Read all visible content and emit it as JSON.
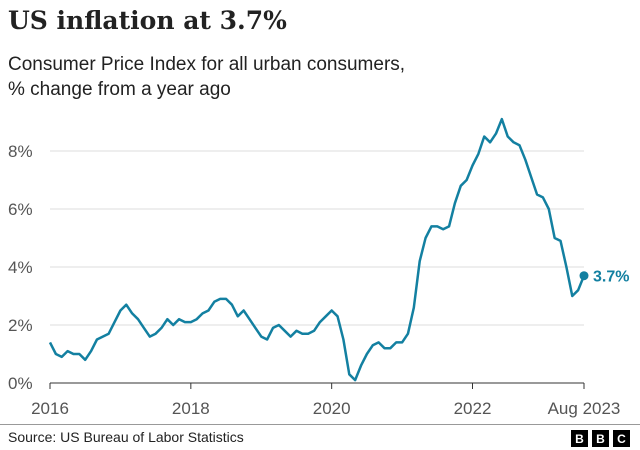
{
  "title": "US inflation at 3.7%",
  "subtitle_line1": "Consumer Price Index for all urban consumers,",
  "subtitle_line2": "% change from a year ago",
  "source": "Source: US Bureau of Labor Statistics",
  "logo": "BBC",
  "chart_data": {
    "type": "line",
    "x_start": "2016-01",
    "x_end": "2023-08",
    "xticks": [
      "2016",
      "2018",
      "2020",
      "2022",
      "Aug 2023"
    ],
    "yticks": [
      "0%",
      "2%",
      "4%",
      "6%",
      "8%"
    ],
    "ylim": [
      0,
      9.2
    ],
    "grid": true,
    "line_color": "#1380A1",
    "end_label": "3.7%",
    "values": [
      1.4,
      1.0,
      0.9,
      1.1,
      1.0,
      1.0,
      0.8,
      1.1,
      1.5,
      1.6,
      1.7,
      2.1,
      2.5,
      2.7,
      2.4,
      2.2,
      1.9,
      1.6,
      1.7,
      1.9,
      2.2,
      2.0,
      2.2,
      2.1,
      2.1,
      2.2,
      2.4,
      2.5,
      2.8,
      2.9,
      2.9,
      2.7,
      2.3,
      2.5,
      2.2,
      1.9,
      1.6,
      1.5,
      1.9,
      2.0,
      1.8,
      1.6,
      1.8,
      1.7,
      1.7,
      1.8,
      2.1,
      2.3,
      2.5,
      2.3,
      1.5,
      0.3,
      0.1,
      0.6,
      1.0,
      1.3,
      1.4,
      1.2,
      1.2,
      1.4,
      1.4,
      1.7,
      2.6,
      4.2,
      5.0,
      5.4,
      5.4,
      5.3,
      5.4,
      6.2,
      6.8,
      7.0,
      7.5,
      7.9,
      8.5,
      8.3,
      8.6,
      9.1,
      8.5,
      8.3,
      8.2,
      7.7,
      7.1,
      6.5,
      6.4,
      6.0,
      5.0,
      4.9,
      4.0,
      3.0,
      3.2,
      3.7
    ]
  }
}
